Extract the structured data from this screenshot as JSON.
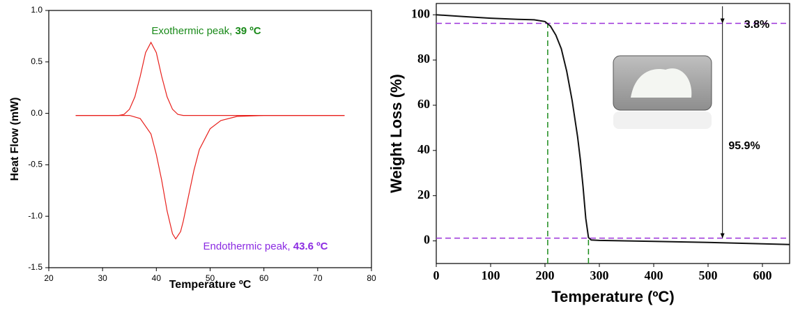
{
  "chart_data": [
    {
      "type": "line",
      "x_label": "Temperature ºC",
      "y_label": "Heat Flow (mW)",
      "xlim": [
        20,
        80
      ],
      "ylim": [
        -1.5,
        1.0
      ],
      "xticks": [
        20,
        30,
        40,
        50,
        60,
        70,
        80
      ],
      "yticks": [
        {
          "value": -1.5,
          "label": "-1.5"
        },
        {
          "value": -1,
          "label": "-1.0"
        },
        -0.5,
        {
          "value": 0,
          "label": "0.0"
        },
        0.5,
        {
          "value": 1,
          "label": "1.0"
        }
      ],
      "series": [
        {
          "color": "#e8201c",
          "x": [
            25,
            30,
            33,
            34,
            35,
            36,
            37,
            38,
            39,
            40,
            41,
            42,
            43,
            44,
            45,
            48,
            55,
            65,
            75
          ],
          "values": [
            -0.02,
            -0.02,
            -0.02,
            -0.01,
            0.04,
            0.16,
            0.36,
            0.59,
            0.69,
            0.59,
            0.36,
            0.16,
            0.04,
            -0.01,
            -0.02,
            -0.02,
            -0.02,
            -0.02,
            -0.02
          ]
        },
        {
          "color": "#e8201c",
          "x": [
            25,
            30,
            35,
            37,
            39,
            40,
            41,
            42,
            43,
            43.6,
            44.5,
            45,
            46,
            47,
            48,
            50,
            52,
            55,
            60,
            75
          ],
          "values": [
            -0.02,
            -0.02,
            -0.02,
            -0.05,
            -0.2,
            -0.4,
            -0.65,
            -0.95,
            -1.17,
            -1.22,
            -1.15,
            -1.05,
            -0.8,
            -0.55,
            -0.35,
            -0.15,
            -0.07,
            -0.03,
            -0.02,
            -0.02
          ]
        }
      ],
      "annotations": [
        {
          "text": "Exothermic peak, ",
          "emphasis": "39 ºC",
          "color": "#1a8a1a"
        },
        {
          "text": "Endothermic peak, ",
          "emphasis": "43.6 ºC",
          "color": "#8b2be2"
        }
      ]
    },
    {
      "type": "line",
      "x_label": "Temperature (ºC)",
      "y_label": "Weight Loss (%)",
      "xlim": [
        0,
        650
      ],
      "ylim": [
        -10,
        105
      ],
      "xticks": [
        0,
        100,
        200,
        300,
        400,
        500,
        600
      ],
      "yticks": [
        0,
        20,
        40,
        60,
        80,
        100
      ],
      "series": [
        {
          "color": "#111111",
          "x": [
            0,
            50,
            100,
            150,
            180,
            200,
            210,
            220,
            230,
            240,
            250,
            260,
            265,
            270,
            275,
            280,
            285,
            300,
            400,
            500,
            650
          ],
          "values": [
            100,
            99.2,
            98.5,
            98,
            97.8,
            97,
            95,
            91,
            85,
            75,
            62,
            46,
            36,
            24,
            10,
            1.5,
            0.4,
            0.2,
            -0.2,
            -0.7,
            -1.6
          ]
        }
      ],
      "hlines": [
        96.2,
        1.2
      ],
      "hline_color": "#9b30d9",
      "vlines": [
        205,
        280
      ],
      "vline_color": "#1a8a1a",
      "annotations": [
        {
          "text": "3.8%"
        },
        {
          "text": "95.9%"
        }
      ]
    }
  ]
}
